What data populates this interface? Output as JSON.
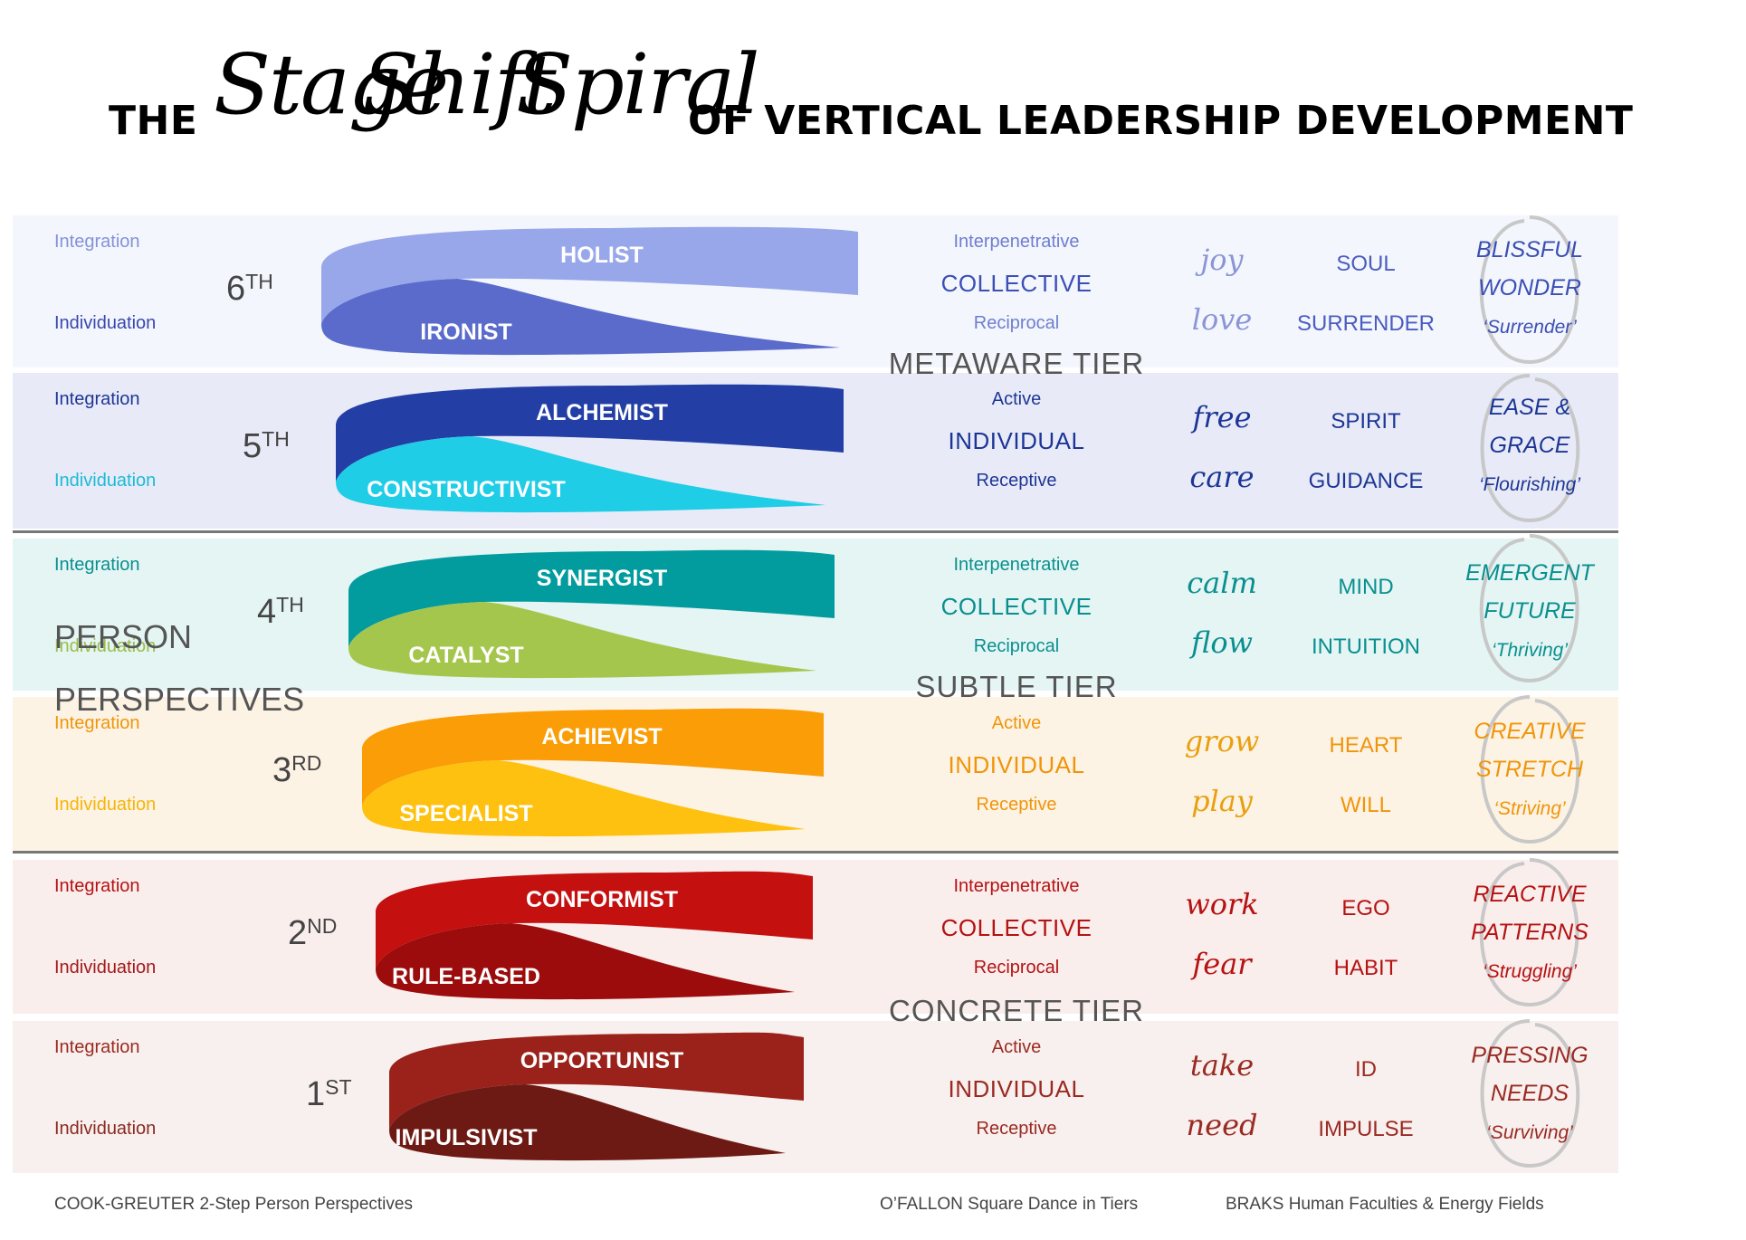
{
  "title": {
    "prefix": "THE",
    "script_words": [
      "Stage",
      "Shift",
      "Spiral"
    ],
    "suffix": "OF VERTICAL LEADERSHIP DEVELOPMENT"
  },
  "side_title": [
    "PERSON",
    "PERSPECTIVES"
  ],
  "tiers": [
    "METAWARE TIER",
    "SUBTLE TIER",
    "CONCRETE TIER"
  ],
  "stages": [
    {
      "ordinal": "6",
      "suffix": "TH",
      "integration": "Integration",
      "individuation": "Individuation",
      "upper": "HOLIST",
      "lower": "IRONIST",
      "mode_top": "Interpenetrative",
      "mode_main": "COLLECTIVE",
      "mode_bottom": "Reciprocal",
      "verbs": [
        "joy",
        "love"
      ],
      "faculties": [
        "SOUL",
        "SURRENDER"
      ],
      "state": [
        "BLISSFUL",
        "WONDER"
      ],
      "state_sub": "‘Surrender’",
      "colors": {
        "band": "#f3f6fd",
        "upper": "#97a7ea",
        "lower": "#5a6bcc",
        "side_top": "#8492d8",
        "side_bottom": "#3a48ae",
        "mid_small": "#6f7ecf",
        "mid_big": "#3b4fb5",
        "verb": "#8b95d6",
        "faculty": "#4b5cc0",
        "state": "#3b4fb5"
      }
    },
    {
      "ordinal": "5",
      "suffix": "TH",
      "integration": "Integration",
      "individuation": "Individuation",
      "upper": "ALCHEMIST",
      "lower": "CONSTRUCTIVIST",
      "mode_top": "Active",
      "mode_main": "INDIVIDUAL",
      "mode_bottom": "Receptive",
      "verbs": [
        "free",
        "care"
      ],
      "faculties": [
        "SPIRIT",
        "GUIDANCE"
      ],
      "state": [
        "EASE &",
        "GRACE"
      ],
      "state_sub": "‘Flourishing’",
      "colors": {
        "band": "#e8ebf7",
        "upper": "#233fa5",
        "lower": "#1fcde6",
        "side_top": "#1d3696",
        "side_bottom": "#1cbad6",
        "mid_small": "#1d3696",
        "mid_big": "#1d3696",
        "verb": "#1d3696",
        "faculty": "#1d3696",
        "state": "#1d3696"
      }
    },
    {
      "ordinal": "4",
      "suffix": "TH",
      "integration": "Integration",
      "individuation": "Individuation",
      "upper": "SYNERGIST",
      "lower": "CATALYST",
      "mode_top": "Interpenetrative",
      "mode_main": "COLLECTIVE",
      "mode_bottom": "Reciprocal",
      "verbs": [
        "calm",
        "flow"
      ],
      "faculties": [
        "MIND",
        "INTUITION"
      ],
      "state": [
        "EMERGENT",
        "FUTURE"
      ],
      "state_sub": "‘Thriving’",
      "colors": {
        "band": "#e4f5f4",
        "upper": "#039c9e",
        "lower": "#a5c64d",
        "side_top": "#0a8f8f",
        "side_bottom": "#9bbd4a",
        "mid_small": "#0a8f8f",
        "mid_big": "#0a8f8f",
        "verb": "#0a8f8f",
        "faculty": "#0a8f8f",
        "state": "#0a8f8f"
      }
    },
    {
      "ordinal": "3",
      "suffix": "RD",
      "integration": "Integration",
      "individuation": "Individuation",
      "upper": "ACHIEVIST",
      "lower": "SPECIALIST",
      "mode_top": "Active",
      "mode_main": "INDIVIDUAL",
      "mode_bottom": "Receptive",
      "verbs": [
        "grow",
        "play"
      ],
      "faculties": [
        "HEART",
        "WILL"
      ],
      "state": [
        "CREATIVE",
        "STRETCH"
      ],
      "state_sub": "‘Striving’",
      "colors": {
        "band": "#fdf3e4",
        "upper": "#fa9d06",
        "lower": "#fec10f",
        "side_top": "#f0950a",
        "side_bottom": "#f5b50a",
        "mid_small": "#f0950a",
        "mid_big": "#f0950a",
        "verb": "#e8a010",
        "faculty": "#f0950a",
        "state": "#f0950a"
      }
    },
    {
      "ordinal": "2",
      "suffix": "ND",
      "integration": "Integration",
      "individuation": "Individuation",
      "upper": "CONFORMIST",
      "lower": "RULE-BASED",
      "mode_top": "Interpenetrative",
      "mode_main": "COLLECTIVE",
      "mode_bottom": "Reciprocal",
      "verbs": [
        "work",
        "fear"
      ],
      "faculties": [
        "EGO",
        "HABIT"
      ],
      "state": [
        "REACTIVE",
        "PATTERNS"
      ],
      "state_sub": "‘Struggling’",
      "colors": {
        "band": "#faeeed",
        "upper": "#c4100f",
        "lower": "#9c0c0c",
        "side_top": "#b51212",
        "side_bottom": "#a11a1a",
        "mid_small": "#b51212",
        "mid_big": "#b51212",
        "verb": "#b51212",
        "faculty": "#b51212",
        "state": "#b51212"
      }
    },
    {
      "ordinal": "1",
      "suffix": "ST",
      "integration": "Integration",
      "individuation": "Individuation",
      "upper": "OPPORTUNIST",
      "lower": "IMPULSIVIST",
      "mode_top": "Active",
      "mode_main": "INDIVIDUAL",
      "mode_bottom": "Receptive",
      "verbs": [
        "take",
        "need"
      ],
      "faculties": [
        "ID",
        "IMPULSE"
      ],
      "state": [
        "PRESSING",
        "NEEDS"
      ],
      "state_sub": "‘Surviving’",
      "colors": {
        "band": "#f8f0ee",
        "upper": "#9a221a",
        "lower": "#6e1a14",
        "side_top": "#9a2a22",
        "side_bottom": "#8a2a22",
        "mid_small": "#9a2a22",
        "mid_big": "#9a2a22",
        "verb": "#9a2a22",
        "faculty": "#9a2a22",
        "state": "#9a2a22"
      }
    }
  ],
  "footer": {
    "left": "COOK-GREUTER 2-Step Person Perspectives",
    "middle": "O’FALLON Square Dance in Tiers",
    "right": "BRAKS Human Faculties & Energy Fields"
  }
}
